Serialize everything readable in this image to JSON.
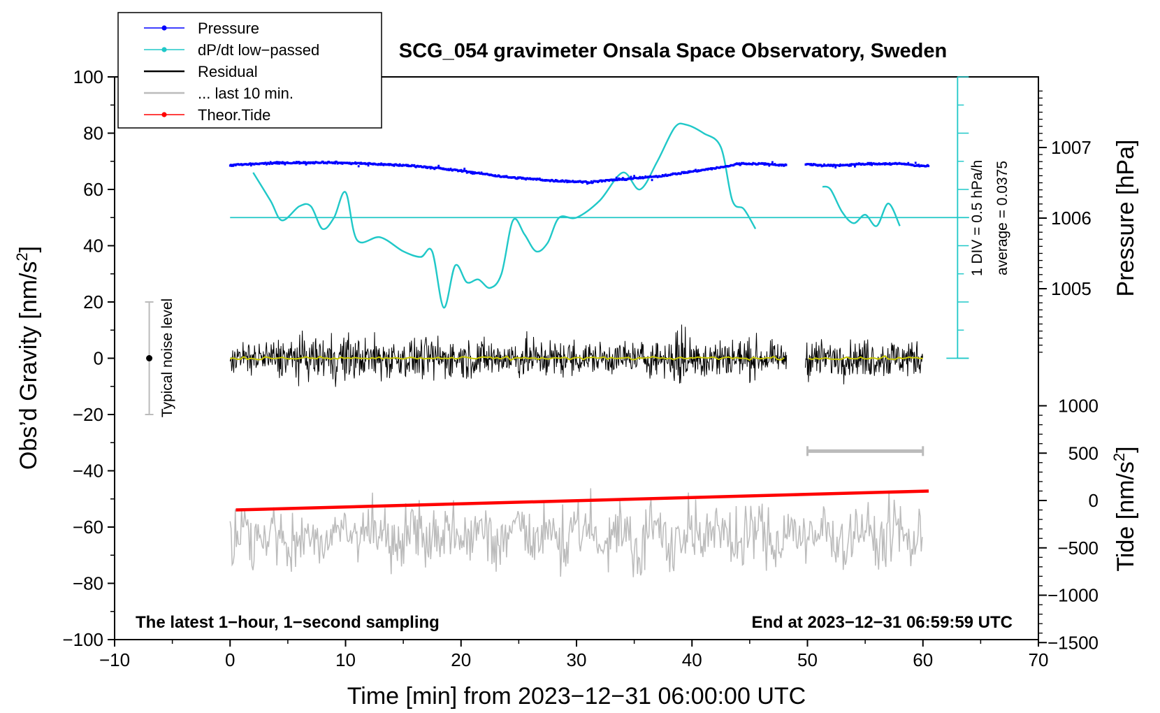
{
  "chart_data": {
    "type": "line",
    "title": "SCG_054 gravimeter Onsala Space Observatory, Sweden",
    "xlabel": "Time [min] from 2023−12−31 06:00:00 UTC",
    "ylabel": "Obs’d Gravity [nm/s²]",
    "ylabel_parts": {
      "base": "Obs’d Gravity [nm/s",
      "sup": "2",
      "end": "]"
    },
    "y2label_pressure": "Pressure [hPa]",
    "y2label_tide": "Tide [nm/s²]",
    "y2label_tide_parts": {
      "base": "Tide [nm/s",
      "sup": "2",
      "end": "]"
    },
    "xlim": [
      -10,
      70
    ],
    "ylim": [
      -100,
      100
    ],
    "x_ticks": [
      "−10",
      "0",
      "10",
      "20",
      "30",
      "40",
      "50",
      "60",
      "70"
    ],
    "y_ticks": [
      "−100",
      "−80",
      "−60",
      "−40",
      "−20",
      "0",
      "20",
      "40",
      "60",
      "80",
      "100"
    ],
    "pressure_ticks": [
      {
        "value": 1005,
        "label": "1005"
      },
      {
        "value": 1006,
        "label": "1006"
      },
      {
        "value": 1007,
        "label": "1007"
      }
    ],
    "tide_ticks": [
      {
        "value": -1500,
        "label": "−1500"
      },
      {
        "value": -1000,
        "label": "−1000"
      },
      {
        "value": -500,
        "label": "−500"
      },
      {
        "value": 0,
        "label": "0"
      },
      {
        "value": 500,
        "label": "500"
      },
      {
        "value": 1000,
        "label": "1000"
      }
    ],
    "legend": [
      {
        "label": "Pressure",
        "color": "#0000ff",
        "marker": true
      },
      {
        "label": "dP/dt low−passed",
        "color": "#20c8c8",
        "marker": true
      },
      {
        "label": "Residual",
        "color": "#000000",
        "marker": false
      },
      {
        "label": "... last 10 min.",
        "color": "#bbbbbb",
        "marker": false
      },
      {
        "label": "Theor.Tide",
        "color": "#ff0000",
        "marker": true
      }
    ],
    "legend_position": "top-left",
    "annotations": {
      "bottom_left": "The latest 1−hour, 1−second sampling",
      "bottom_right": "End at 2023−12−31 06:59:59 UTC",
      "noise_label": "Typical noise level",
      "dpdt_scale": "1 DIV = 0.5 hPa/h",
      "dpdt_average": "average = 0.0375"
    },
    "noise_bar": {
      "x": -7,
      "y_center": 0,
      "y_low": -20,
      "y_high": 20
    },
    "last10_bar": {
      "x_start": 50,
      "x_end": 60,
      "y": -33
    },
    "gap": [
      48.2,
      49.8
    ],
    "dpdt_baseline_y": 50,
    "dpdt_scale_ticks": {
      "x": 63,
      "y_from": 0,
      "y_to": 100,
      "major_step": 20,
      "minor_step": 10
    },
    "series": [
      {
        "name": "Pressure",
        "color": "#0000ff",
        "unit": "hPa",
        "x": [
          0,
          4,
          8,
          12,
          16,
          20,
          24,
          28,
          31,
          34,
          37,
          40,
          43,
          44,
          46,
          48,
          50,
          52,
          54,
          56,
          58,
          60
        ],
        "values": [
          1006.75,
          1006.78,
          1006.79,
          1006.77,
          1006.74,
          1006.67,
          1006.58,
          1006.53,
          1006.51,
          1006.55,
          1006.59,
          1006.66,
          1006.73,
          1006.77,
          1006.77,
          1006.75,
          1006.76,
          1006.74,
          1006.76,
          1006.77,
          1006.77,
          1006.74
        ]
      },
      {
        "name": "dP/dt low−passed",
        "color": "#20c8c8",
        "unit": "nm/s² equivalent",
        "segments": [
          {
            "x": [
              2,
              3.5,
              4.5,
              6,
              7,
              8,
              9,
              10,
              11,
              13,
              15,
              16.5,
              17.5,
              18.5,
              19.5,
              20.5,
              21.5,
              22.5,
              23.5,
              24.5,
              25.5,
              26.5,
              27.5,
              28.5,
              30,
              32,
              34,
              35.5,
              37,
              38.5,
              39.5,
              41,
              42.5,
              43.5,
              44.5,
              45.5
            ],
            "values": [
              66,
              56,
              49,
              54,
              54,
              46,
              50,
              59,
              42,
              43,
              38,
              36,
              38,
              18,
              33,
              27,
              28,
              25,
              30,
              49,
              44,
              38,
              41,
              50,
              50,
              56,
              66,
              60,
              70,
              82,
              83,
              80,
              75,
              56,
              53,
              46
            ]
          },
          {
            "x": [
              51.3,
              52,
              53,
              54,
              55,
              56,
              57,
              58
            ],
            "values": [
              61,
              60,
              52,
              48,
              51,
              47,
              55,
              47
            ]
          }
        ]
      },
      {
        "name": "Residual",
        "color": "#000000",
        "unit": "nm/s²",
        "x": [
          0,
          2,
          4,
          6,
          8,
          10,
          12,
          14,
          16,
          18,
          20,
          22,
          24,
          26,
          28,
          30,
          32,
          34,
          36,
          38,
          39,
          40,
          42,
          44,
          46,
          48,
          50,
          52,
          54,
          56,
          58,
          60
        ],
        "amplitude": [
          12,
          14,
          16,
          17,
          18,
          20,
          17,
          18,
          16,
          18,
          16,
          16,
          16,
          17,
          15,
          15,
          13,
          14,
          14,
          16,
          30,
          17,
          18,
          17,
          15,
          10,
          16,
          15,
          14,
          17,
          16,
          14
        ],
        "mean_color": "#c8c800",
        "mean_value": 0
      },
      {
        "name": "... last 10 min.",
        "color": "#bbbbbb",
        "unit": "nm/s²",
        "baseline": -63,
        "amplitude": 14
      },
      {
        "name": "Theor.Tide",
        "color": "#ff0000",
        "unit": "nm/s²",
        "x": [
          0.5,
          60.5
        ],
        "values": [
          -100,
          100
        ]
      }
    ]
  }
}
